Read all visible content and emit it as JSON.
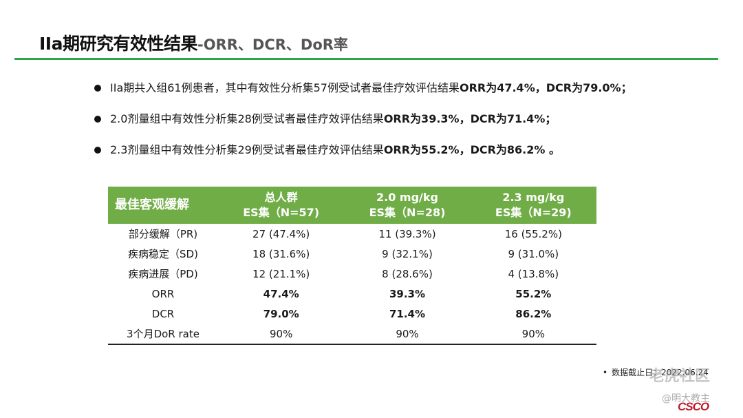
{
  "title": {
    "main": "IIa期研究有效性结果",
    "sub": "-ORR、DCR、DoR率"
  },
  "bullets": [
    {
      "text": "IIa期共入组61例患者，其中有效性分析集57例受试者最佳疗效评估结果",
      "bold": "ORR为47.4%，DCR为79.0%；"
    },
    {
      "text": "2.0剂量组中有效性分析集28例受试者最佳疗效评估结果",
      "bold": "ORR为39.3%，DCR为71.4%；"
    },
    {
      "text": "2.3剂量组中有效性分析集29例受试者最佳疗效评估结果",
      "bold": "ORR为55.2%，DCR为86.2% 。"
    }
  ],
  "table": {
    "corner": "最佳客观缓解",
    "columns": [
      {
        "line1": "总人群",
        "line2": "ES集（N=57)"
      },
      {
        "line1": "2.0 mg/kg",
        "line2": "ES集（N=28)"
      },
      {
        "line1": "2.3 mg/kg",
        "line2": "ES集（N=29)"
      }
    ],
    "rows": [
      {
        "label": "部分缓解（PR)",
        "cells": [
          "27 (47.4%)",
          "11 (39.3%)",
          "16 (55.2%)"
        ]
      },
      {
        "label": "疾病稳定（SD)",
        "cells": [
          "18 (31.6%)",
          "9 (32.1%)",
          "9 (31.0%)"
        ]
      },
      {
        "label": "疾病进展（PD)",
        "cells": [
          "12 (21.1%)",
          "8 (28.6%)",
          "4 (13.8%)"
        ]
      },
      {
        "label": "ORR",
        "cells": [
          "47.4%",
          "39.3%",
          "55.2%"
        ]
      },
      {
        "label": "DCR",
        "cells": [
          "79.0%",
          "71.4%",
          "86.2%"
        ]
      },
      {
        "label": "3个月DoR rate",
        "cells": [
          "90%",
          "90%",
          "90%"
        ]
      }
    ]
  },
  "footnote": {
    "bullet": "•",
    "text": "数据截止日：2022.06.24"
  },
  "watermark": {
    "line1": "老虎社区",
    "line2": "@明大教主"
  },
  "logo": {
    "text": "CSCO"
  },
  "colors": {
    "accent": "#2fa64e",
    "header_fill": "#70ad47"
  }
}
